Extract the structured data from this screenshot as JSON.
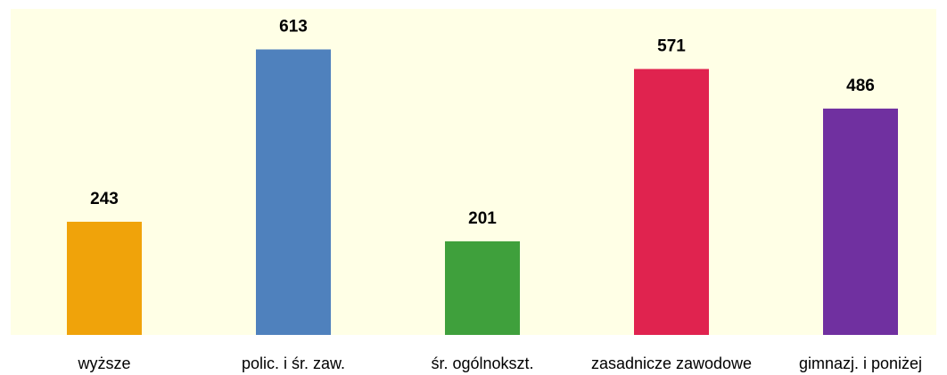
{
  "chart_data": {
    "type": "bar",
    "categories": [
      "wyższe",
      "polic. i śr. zaw.",
      "śr. ogólnokszt.",
      "zasadnicze zawodowe",
      "gimnazj. i poniżej"
    ],
    "values": [
      243,
      613,
      201,
      571,
      486
    ],
    "colors": [
      "#f0a30a",
      "#4f81bd",
      "#3fa03c",
      "#e0234f",
      "#7030a0"
    ],
    "ylim": [
      0,
      700
    ]
  }
}
